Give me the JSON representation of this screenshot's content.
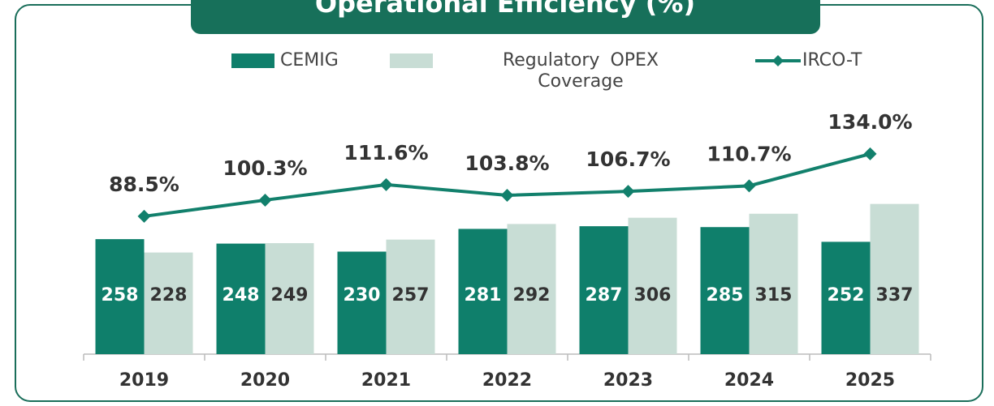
{
  "chart_data": {
    "type": "bar-line",
    "title": "Operational Efficiency (%)",
    "categories": [
      "2019",
      "2020",
      "2021",
      "2022",
      "2023",
      "2024",
      "2025"
    ],
    "ylim": [
      0,
      600
    ],
    "y2lim": [
      -12,
      183
    ],
    "series": [
      {
        "name": "CEMIG",
        "type": "bar",
        "color": "#0f7f6b",
        "values": [
          258,
          248,
          230,
          281,
          287,
          285,
          252
        ]
      },
      {
        "name": "Regulatory OPEX Coverage",
        "type": "bar",
        "color": "#c8ddd5",
        "values": [
          228,
          249,
          257,
          292,
          306,
          315,
          337
        ]
      },
      {
        "name": "IRCO-T",
        "type": "line",
        "axis": "y2",
        "color": "#12806c",
        "values": [
          88.5,
          100.3,
          111.6,
          103.8,
          106.7,
          110.7,
          134.0
        ],
        "value_labels": [
          "88.5%",
          "100.3%",
          "111.6%",
          "103.8%",
          "106.7%",
          "110.7%",
          "134.0%"
        ]
      }
    ]
  }
}
